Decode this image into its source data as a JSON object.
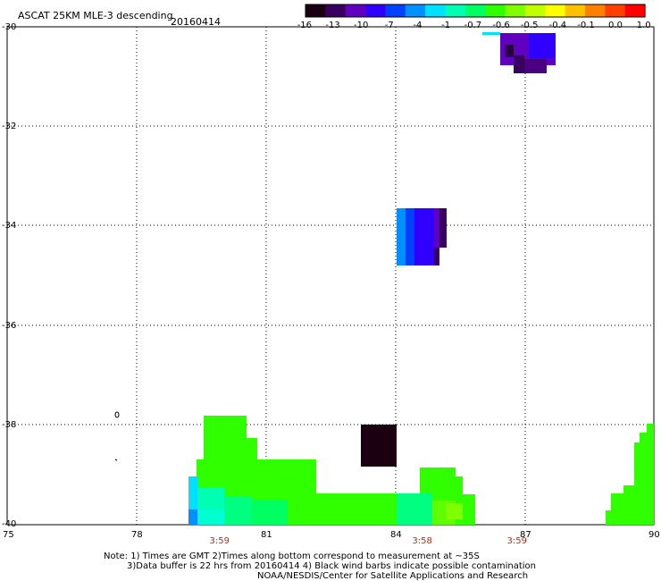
{
  "header": {
    "title": "ASCAT 25KM MLE-3 descending",
    "date": "20160414"
  },
  "colorbar": {
    "labels": [
      "-16",
      "-13",
      "-10",
      "-7",
      "-4",
      "-1",
      "-0.7",
      "-0.6",
      "-0.5",
      "-0.4",
      "-0.1",
      "0.0",
      "1.0"
    ],
    "colors": [
      "#1a0010",
      "#3a0060",
      "#6000c0",
      "#3000ff",
      "#0040ff",
      "#0090ff",
      "#00e0ff",
      "#00ffb0",
      "#00ff60",
      "#30ff00",
      "#80ff00",
      "#c0ff00",
      "#ffff00",
      "#ffc000",
      "#ff8000",
      "#ff4000",
      "#ff0000"
    ]
  },
  "axes": {
    "y_labels": [
      "-30",
      "-32",
      "-34",
      "-36",
      "-38",
      "-40"
    ],
    "x_labels": [
      "75",
      "78",
      "81",
      "84",
      "87",
      "90"
    ],
    "lon_range": [
      75,
      90
    ],
    "lat_range": [
      -40,
      -30
    ]
  },
  "times": [
    {
      "label": "3:59",
      "lon": 79.9
    },
    {
      "label": "3:58",
      "lon": 84.6
    },
    {
      "label": "3:59",
      "lon": 86.8
    }
  ],
  "notes": {
    "line1": "Note: 1) Times are GMT 2)Times along bottom correspond to measurement at ~35S",
    "line2": "3)Data buffer is 22 hrs from 20160414 4) Black wind barbs indicate possible contamination",
    "line3": "NOAA/NESDIS/Center for Satellite Applications and Research"
  }
}
